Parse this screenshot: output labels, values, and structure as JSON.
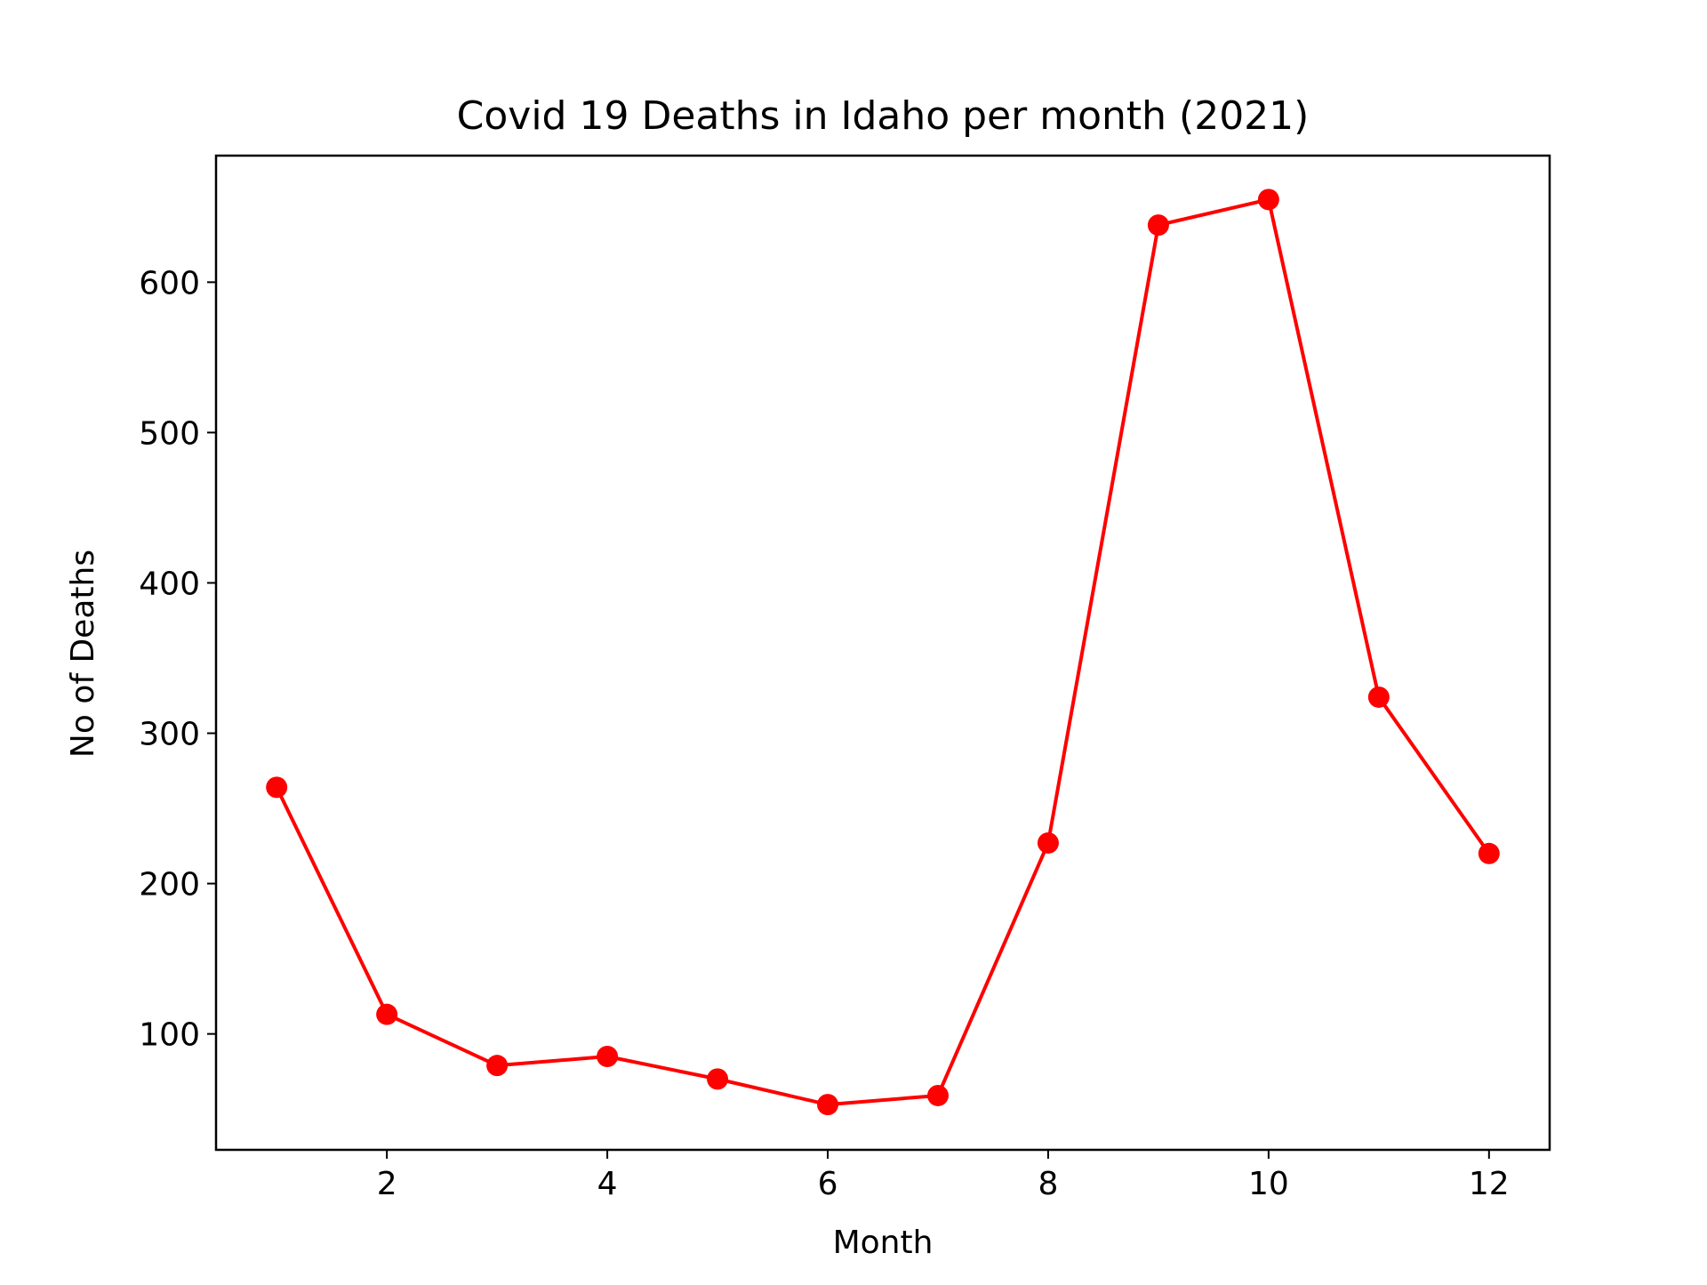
{
  "chart_data": {
    "type": "line",
    "title": "Covid 19 Deaths in Idaho per month (2021)",
    "xlabel": "Month",
    "ylabel": "No of Deaths",
    "x": [
      1,
      2,
      3,
      4,
      5,
      6,
      7,
      8,
      9,
      10,
      11,
      12
    ],
    "series": [
      {
        "values": [
          264,
          113,
          79,
          85,
          70,
          53,
          59,
          227,
          638,
          655,
          324,
          220
        ],
        "color": "#ff0000",
        "marker": "circle"
      }
    ],
    "xlim": [
      0.45,
      12.55
    ],
    "ylim": [
      22.9,
      684.2
    ],
    "xticks": [
      2,
      4,
      6,
      8,
      10,
      12
    ],
    "yticks": [
      100,
      200,
      300,
      400,
      500,
      600
    ],
    "xtick_labels": [
      "2",
      "4",
      "6",
      "8",
      "10",
      "12"
    ],
    "ytick_labels": [
      "100",
      "200",
      "300",
      "400",
      "500",
      "600"
    ],
    "grid": false,
    "legend": "none"
  }
}
